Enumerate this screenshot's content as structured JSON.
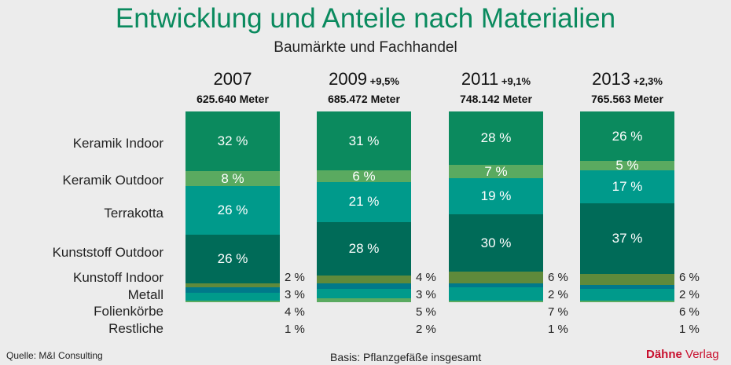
{
  "title": "Entwicklung und Anteile nach Materialien",
  "subtitle": "Baumärkte und Fachhandel",
  "source": "Quelle: M&I Consulting",
  "basis": "Basis: Pflanzgefäße insgesamt",
  "publisher": {
    "name_bold": "Dähne",
    "name_rest": "Verlag"
  },
  "chart_data": {
    "type": "stacked-bar",
    "categories": [
      "Keramik Indoor",
      "Keramik Outdoor",
      "Terrakotta",
      "Kunststoff Outdoor",
      "Kunstoff Indoor",
      "Metall",
      "Folienkörbe",
      "Restliche"
    ],
    "colors": [
      "#0b8a5e",
      "#5aaa60",
      "#009a8b",
      "#006b58",
      "#5f8a3b",
      "#00798a",
      "#009a8b",
      "#5aaa60"
    ],
    "bars": [
      {
        "year": "2007",
        "change": "",
        "total": "625.640 Meter",
        "values": [
          32,
          8,
          26,
          26,
          2,
          3,
          4,
          1
        ]
      },
      {
        "year": "2009",
        "change": "+9,5%",
        "total": "685.472 Meter",
        "values": [
          31,
          6,
          21,
          28,
          4,
          3,
          5,
          2
        ]
      },
      {
        "year": "2011",
        "change": "+9,1%",
        "total": "748.142 Meter",
        "values": [
          28,
          7,
          19,
          30,
          6,
          2,
          7,
          1
        ]
      },
      {
        "year": "2013",
        "change": "+2,3%",
        "total": "765.563 Meter",
        "values": [
          26,
          5,
          17,
          37,
          6,
          2,
          6,
          1
        ]
      }
    ],
    "unit": "%"
  }
}
